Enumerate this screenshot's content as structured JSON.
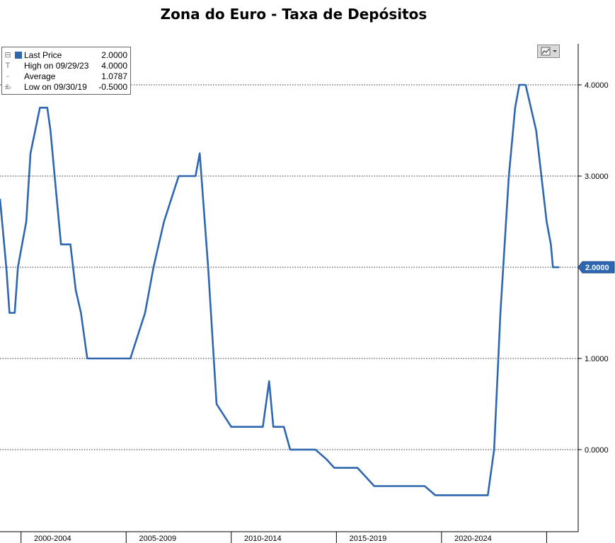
{
  "chart_data": {
    "type": "line",
    "title": "Zona do Euro - Taxa de Depósitos",
    "xlabel": "",
    "ylabel": "",
    "ylim": [
      -0.9,
      4.45
    ],
    "xlim": [
      1999.0,
      2026.5
    ],
    "y_ticks": [
      "4.0000",
      "3.0000",
      "2.0000",
      "1.0000",
      "0.0000"
    ],
    "y_tick_values": [
      4,
      3,
      2,
      1,
      0
    ],
    "x_tick_labels": [
      "2000-2004",
      "2005-2009",
      "2010-2014",
      "2015-2019",
      "2020-2024"
    ],
    "x_tick_label_positions": [
      2001.5,
      2006.5,
      2011.5,
      2016.5,
      2021.5
    ],
    "grid": true,
    "series": [
      {
        "name": "Last Price",
        "color": "#2f66b0",
        "x": [
          1999.0,
          1999.3,
          1999.45,
          1999.7,
          1999.85,
          2000.25,
          2000.45,
          2000.9,
          2001.25,
          2001.4,
          2001.7,
          2001.9,
          2002.0,
          2002.15,
          2002.35,
          2002.6,
          2002.85,
          2003.15,
          2003.35,
          2003.5,
          2004.5,
          2005.2,
          2005.9,
          2006.3,
          2006.8,
          2007.5,
          2007.75,
          2008.0,
          2008.3,
          2008.5,
          2008.9,
          2009.3,
          2010.0,
          2011.0,
          2011.5,
          2011.8,
          2012.0,
          2012.5,
          2012.8,
          2013.5,
          2014.0,
          2014.5,
          2014.9,
          2016.0,
          2016.8,
          2019.2,
          2019.7,
          2021.0,
          2022.2,
          2022.5,
          2022.8,
          2023.2,
          2023.5,
          2023.7,
          2024.0,
          2024.5,
          2024.75,
          2025.0,
          2025.2,
          2025.3,
          2025.6
        ],
        "values": [
          2.75,
          2.0,
          1.5,
          1.5,
          2.0,
          2.5,
          3.25,
          3.75,
          3.75,
          3.5,
          2.75,
          2.25,
          2.25,
          2.25,
          2.25,
          1.75,
          1.5,
          1.0,
          1.0,
          1.0,
          1.0,
          1.0,
          1.5,
          2.0,
          2.5,
          3.0,
          3.0,
          3.0,
          3.0,
          3.25,
          2.0,
          0.5,
          0.25,
          0.25,
          0.25,
          0.75,
          0.25,
          0.25,
          0.0,
          0.0,
          0.0,
          -0.1,
          -0.2,
          -0.2,
          -0.4,
          -0.4,
          -0.5,
          -0.5,
          -0.5,
          0.0,
          1.5,
          3.0,
          3.75,
          4.0,
          4.0,
          3.5,
          3.0,
          2.5,
          2.25,
          2.0,
          2.0
        ]
      }
    ],
    "last_price_label": "2.0000"
  },
  "legend": {
    "rows": [
      {
        "label": "Last Price",
        "value": "2.0000",
        "glyph": "⊟"
      },
      {
        "label": "High on 09/29/23",
        "value": "4.0000",
        "glyph": "T"
      },
      {
        "label": "Average",
        "value": "1.0787",
        "glyph": "-+-"
      },
      {
        "label": "Low on 09/30/19",
        "value": "-0.5000",
        "glyph": "⊥"
      }
    ]
  },
  "toolbar": {
    "chart_type_icon": "line-chart-icon"
  }
}
